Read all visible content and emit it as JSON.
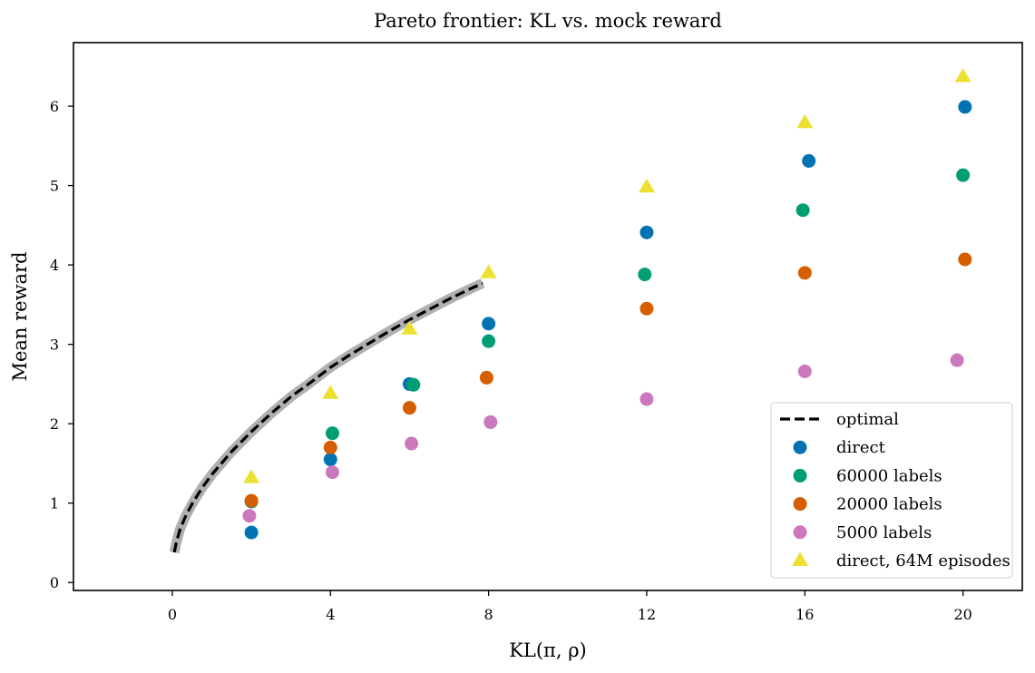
{
  "chart_data": {
    "type": "scatter",
    "title": "Pareto frontier: KL vs. mock reward",
    "xlabel": "KL(π, ρ)",
    "ylabel": "Mean reward",
    "xlim": [
      -2.5,
      21.5
    ],
    "ylim": [
      -0.1,
      6.8
    ],
    "x_ticks": [
      0,
      4,
      8,
      12,
      16,
      20
    ],
    "y_ticks": [
      0,
      1,
      2,
      3,
      4,
      5,
      6
    ],
    "grid": false,
    "legend_position": "lower-right",
    "series": [
      {
        "name": "optimal",
        "kind": "line",
        "style": "dashed",
        "color": "#000000",
        "band_color": "#b0b0b0",
        "x": [
          0.05,
          0.1,
          0.2,
          0.35,
          0.5,
          0.75,
          1,
          1.5,
          2,
          2.5,
          3,
          3.5,
          4,
          4.5,
          5,
          5.5,
          6,
          6.5,
          7,
          7.5,
          7.85
        ],
        "y": [
          0.38,
          0.5,
          0.68,
          0.85,
          0.99,
          1.19,
          1.36,
          1.65,
          1.9,
          2.13,
          2.34,
          2.52,
          2.71,
          2.87,
          3.02,
          3.17,
          3.31,
          3.44,
          3.57,
          3.69,
          3.77
        ]
      },
      {
        "name": "direct",
        "kind": "marker",
        "marker": "circle",
        "color": "#0173b2",
        "x": [
          2,
          4,
          6,
          8,
          12,
          16.1,
          20.05
        ],
        "y": [
          0.63,
          1.55,
          2.5,
          3.26,
          4.41,
          5.31,
          5.99
        ]
      },
      {
        "name": "60000 labels",
        "kind": "marker",
        "marker": "circle",
        "color": "#029e73",
        "x": [
          2,
          4.05,
          6.1,
          8,
          11.95,
          15.95,
          20
        ],
        "y": [
          1.02,
          1.88,
          2.49,
          3.04,
          3.88,
          4.69,
          5.13
        ]
      },
      {
        "name": "20000 labels",
        "kind": "marker",
        "marker": "circle",
        "color": "#d55e00",
        "x": [
          2,
          4,
          6,
          7.95,
          12,
          16,
          20.05
        ],
        "y": [
          1.03,
          1.7,
          2.2,
          2.58,
          3.45,
          3.9,
          4.07
        ]
      },
      {
        "name": "5000 labels",
        "kind": "marker",
        "marker": "circle",
        "color": "#cc78bc",
        "x": [
          1.95,
          4.05,
          6.05,
          8.05,
          12,
          16,
          19.85
        ],
        "y": [
          0.84,
          1.39,
          1.75,
          2.02,
          2.31,
          2.66,
          2.8
        ]
      },
      {
        "name": "direct, 64M episodes",
        "kind": "marker",
        "marker": "triangle",
        "color": "#ece133",
        "x": [
          2,
          4,
          6,
          8,
          12,
          16,
          20
        ],
        "y": [
          1.32,
          2.38,
          3.19,
          3.9,
          4.98,
          5.79,
          6.37
        ]
      }
    ]
  }
}
